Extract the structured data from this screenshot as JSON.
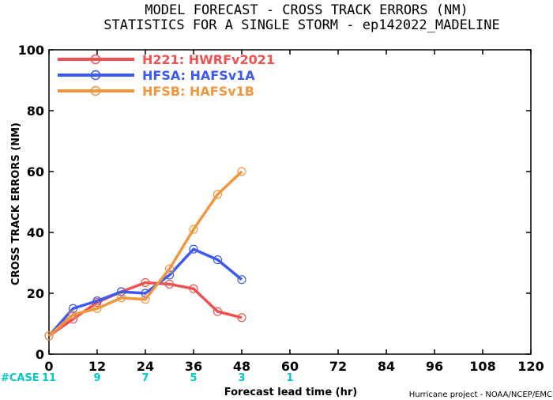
{
  "title_line1": "MODEL FORECAST - CROSS TRACK ERRORS (NM)",
  "title_line2": "STATISTICS FOR A SINGLE STORM - ep142022_MADELINE",
  "credit": "Hurricane project - NOAA/NCEP/EMC",
  "case_label": "#CASE",
  "case_color": "#00c8c8",
  "cases": [
    {
      "x": 0,
      "n": "11"
    },
    {
      "x": 12,
      "n": "9"
    },
    {
      "x": 24,
      "n": "7"
    },
    {
      "x": 36,
      "n": "5"
    },
    {
      "x": 48,
      "n": "3"
    },
    {
      "x": 60,
      "n": "1"
    }
  ],
  "chart_data": {
    "type": "line",
    "title": "MODEL FORECAST - CROSS TRACK ERRORS (NM)",
    "subtitle": "STATISTICS FOR A SINGLE STORM - ep142022_MADELINE",
    "xlabel": "Forecast lead time (hr)",
    "ylabel": "CROSS TRACK ERRORS (NM)",
    "xlim": [
      0,
      120
    ],
    "ylim": [
      0,
      100
    ],
    "xticks": [
      0,
      12,
      24,
      36,
      48,
      60,
      72,
      84,
      96,
      108,
      120
    ],
    "yticks": [
      0,
      20,
      40,
      60,
      80,
      100
    ],
    "grid": false,
    "legend_position": "top-left",
    "series": [
      {
        "name": "H221: HWRFv2021",
        "color": "#f05050",
        "x": [
          0,
          6,
          12,
          18,
          24,
          30,
          36,
          42,
          48
        ],
        "y": [
          6,
          11.5,
          17,
          20.5,
          23.5,
          23,
          21.5,
          14,
          12
        ]
      },
      {
        "name": "HFSA: HAFSv1A",
        "color": "#3c5af0",
        "x": [
          0,
          6,
          12,
          18,
          24,
          30,
          36,
          42,
          48
        ],
        "y": [
          6,
          15,
          17.5,
          20.5,
          20,
          26,
          34.5,
          31,
          24.5
        ]
      },
      {
        "name": "HFSB: HAFSv1B",
        "color": "#f0963c",
        "x": [
          0,
          6,
          12,
          18,
          24,
          30,
          36,
          42,
          48
        ],
        "y": [
          6,
          13,
          15,
          18.5,
          18,
          28,
          41,
          52.5,
          60
        ]
      }
    ]
  }
}
